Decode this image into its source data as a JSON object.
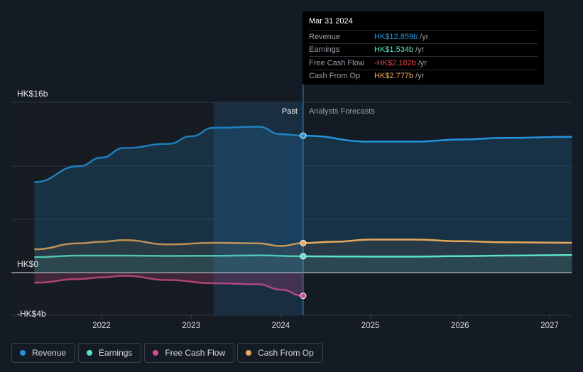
{
  "chart_data": {
    "type": "line",
    "y_unit_prefix": "HK$",
    "ylim": [
      -4,
      16
    ],
    "y_ticks": [
      {
        "value": 16,
        "label": "HK$16b"
      },
      {
        "value": 0,
        "label": "HK$0"
      },
      {
        "value": -4,
        "label": "-HK$4b"
      }
    ],
    "x_ticks": [
      {
        "value": 2022,
        "label": "2022"
      },
      {
        "value": 2023,
        "label": "2023"
      },
      {
        "value": 2024,
        "label": "2024"
      },
      {
        "value": 2025,
        "label": "2025"
      },
      {
        "value": 2026,
        "label": "2026"
      },
      {
        "value": 2027,
        "label": "2027"
      }
    ],
    "past_label": "Past",
    "forecast_label": "Analysts Forecasts",
    "divider_x": 2024.25,
    "highlight_range": [
      2023.25,
      2024.25
    ],
    "series": [
      {
        "name": "Revenue",
        "color": "#2394df",
        "past": [
          [
            2021.25,
            8.5
          ],
          [
            2021.75,
            10.0
          ],
          [
            2022.0,
            10.8
          ],
          [
            2022.25,
            11.7
          ],
          [
            2022.75,
            12.1
          ],
          [
            2023.0,
            12.8
          ],
          [
            2023.25,
            13.6
          ],
          [
            2023.75,
            13.7
          ],
          [
            2024.0,
            13.0
          ],
          [
            2024.25,
            12.859
          ]
        ],
        "forecast": [
          [
            2024.25,
            12.859
          ],
          [
            2025.0,
            12.3
          ],
          [
            2025.5,
            12.3
          ],
          [
            2026.0,
            12.5
          ],
          [
            2026.5,
            12.65
          ],
          [
            2027.25,
            12.75
          ]
        ]
      },
      {
        "name": "Earnings",
        "color": "#5be3c9",
        "past": [
          [
            2021.25,
            1.45
          ],
          [
            2021.75,
            1.6
          ],
          [
            2022.25,
            1.6
          ],
          [
            2022.75,
            1.57
          ],
          [
            2023.25,
            1.58
          ],
          [
            2023.75,
            1.62
          ],
          [
            2024.25,
            1.534
          ]
        ],
        "forecast": [
          [
            2024.25,
            1.534
          ],
          [
            2025.0,
            1.5
          ],
          [
            2025.5,
            1.5
          ],
          [
            2026.0,
            1.55
          ],
          [
            2026.5,
            1.6
          ],
          [
            2027.25,
            1.65
          ]
        ]
      },
      {
        "name": "Free Cash Flow",
        "color": "#d04e8b",
        "past": [
          [
            2021.25,
            -0.95
          ],
          [
            2021.75,
            -0.6
          ],
          [
            2022.0,
            -0.45
          ],
          [
            2022.25,
            -0.3
          ],
          [
            2022.75,
            -0.7
          ],
          [
            2023.25,
            -1.0
          ],
          [
            2023.75,
            -1.1
          ],
          [
            2024.0,
            -1.6
          ],
          [
            2024.25,
            -2.182
          ]
        ],
        "forecast": []
      },
      {
        "name": "Cash From Op",
        "color": "#e9a95c",
        "past": [
          [
            2021.25,
            2.2
          ],
          [
            2021.75,
            2.75
          ],
          [
            2022.0,
            2.9
          ],
          [
            2022.25,
            3.05
          ],
          [
            2022.75,
            2.65
          ],
          [
            2023.25,
            2.8
          ],
          [
            2023.75,
            2.75
          ],
          [
            2024.0,
            2.5
          ],
          [
            2024.25,
            2.777
          ]
        ],
        "forecast": [
          [
            2024.25,
            2.777
          ],
          [
            2024.6,
            2.9
          ],
          [
            2025.0,
            3.1
          ],
          [
            2025.5,
            3.1
          ],
          [
            2026.0,
            2.95
          ],
          [
            2026.5,
            2.85
          ],
          [
            2027.25,
            2.8
          ]
        ]
      }
    ]
  },
  "tooltip": {
    "date": "Mar 31 2024",
    "rows": [
      {
        "label": "Revenue",
        "value": "HK$12.859b",
        "unit": "/yr",
        "color": "#2394df"
      },
      {
        "label": "Earnings",
        "value": "HK$1.534b",
        "unit": "/yr",
        "color": "#5be3c9"
      },
      {
        "label": "Free Cash Flow",
        "value": "-HK$2.182b",
        "unit": "/yr",
        "color": "#e7414a"
      },
      {
        "label": "Cash From Op",
        "value": "HK$2.777b",
        "unit": "/yr",
        "color": "#e9a95c"
      }
    ]
  },
  "legend": [
    {
      "label": "Revenue",
      "color": "#2394df"
    },
    {
      "label": "Earnings",
      "color": "#5be3c9"
    },
    {
      "label": "Free Cash Flow",
      "color": "#d04e8b"
    },
    {
      "label": "Cash From Op",
      "color": "#e9a95c"
    }
  ]
}
